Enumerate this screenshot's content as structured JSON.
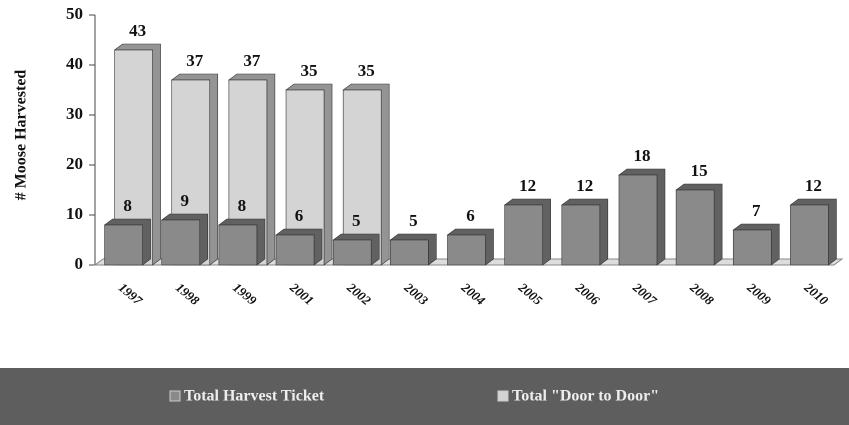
{
  "chart_data": {
    "type": "bar",
    "y_label": "# Moose Harvested",
    "categories": [
      "1997",
      "1998",
      "1999",
      "2001",
      "2002",
      "2003",
      "2004",
      "2005",
      "2006",
      "2007",
      "2008",
      "2009",
      "2010"
    ],
    "series": [
      {
        "name": "Total Harvest Ticket",
        "color": "#8a8a8a",
        "values": [
          8,
          9,
          8,
          6,
          5,
          5,
          6,
          12,
          12,
          18,
          15,
          7,
          12
        ]
      },
      {
        "name": "Total \"Door to Door\"",
        "color": "#d4d4d4",
        "values": [
          43,
          37,
          37,
          35,
          35,
          null,
          null,
          null,
          null,
          null,
          null,
          null,
          null
        ]
      }
    ],
    "ylim": [
      0,
      50
    ],
    "yticks": [
      0,
      10,
      20,
      30,
      40,
      50
    ],
    "legend": "bottom"
  }
}
